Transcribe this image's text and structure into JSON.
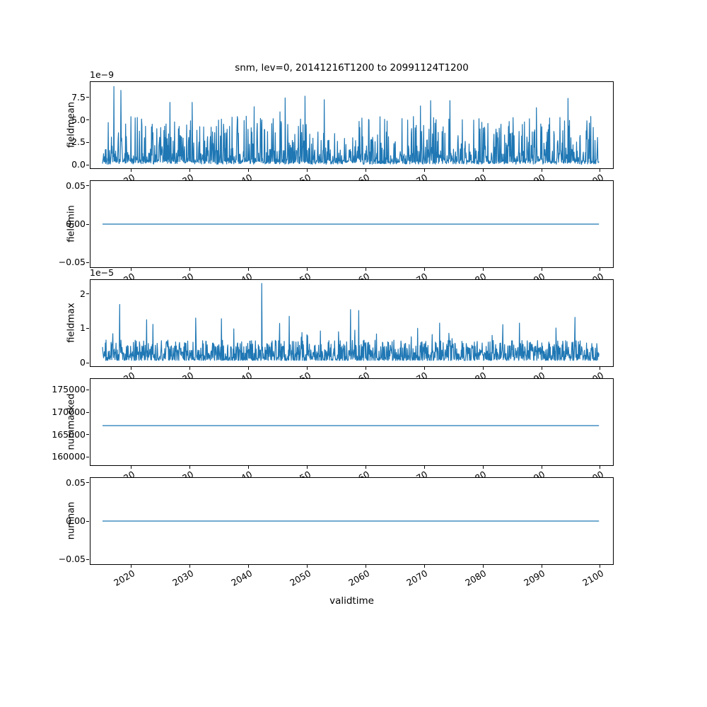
{
  "chart_data": {
    "type": "line",
    "title": "snm, lev=0, 20141216T1200 to 20991124T1200",
    "xlabel": "validtime",
    "line_color": "#1f77b4",
    "x_range_years": [
      2014.96,
      2099.9
    ],
    "xlim": [
      2012.9,
      2102.3
    ],
    "xticks": [
      {
        "v": 2020,
        "label": "2020"
      },
      {
        "v": 2030,
        "label": "2030"
      },
      {
        "v": 2040,
        "label": "2040"
      },
      {
        "v": 2050,
        "label": "2050"
      },
      {
        "v": 2060,
        "label": "2060"
      },
      {
        "v": 2070,
        "label": "2070"
      },
      {
        "v": 2080,
        "label": "2080"
      },
      {
        "v": 2090,
        "label": "2090"
      },
      {
        "v": 2100,
        "label": "2100"
      }
    ],
    "grid": false,
    "legend": "none",
    "subplots": [
      {
        "name": "fieldmean",
        "ylabel": "fieldmean",
        "offset_label": "1e−9",
        "ylim": [
          -0.45,
          9.3
        ],
        "yticks": [
          {
            "v": 0.0,
            "label": "0.0"
          },
          {
            "v": 2.5,
            "label": "2.5"
          },
          {
            "v": 5.0,
            "label": "5.0"
          },
          {
            "v": 7.5,
            "label": "7.5"
          }
        ],
        "series": {
          "kind": "noisy-spikes",
          "seed": 1337,
          "n": 1400,
          "base": 0.4,
          "mid_amp": 5.2,
          "mid_pow": 4,
          "tall_prob": 0.006,
          "tall_min": 5.0,
          "tall_span": 3.0,
          "approx_max_value": 8.8,
          "forced": [
            [
              2016.9,
              8.8
            ],
            [
              2018.1,
              8.35
            ],
            [
              2030.3,
              7.0
            ],
            [
              2040.9,
              6.5
            ],
            [
              2046.2,
              7.5
            ],
            [
              2049.6,
              7.7
            ],
            [
              2052.9,
              7.3
            ],
            [
              2071.1,
              7.2
            ],
            [
              2089.2,
              6.4
            ],
            [
              2094.6,
              7.45
            ]
          ]
        }
      },
      {
        "name": "fieldmin",
        "ylabel": "fieldmin",
        "offset_label": "",
        "ylim": [
          -0.057,
          0.057
        ],
        "yticks": [
          {
            "v": -0.05,
            "label": "−0.05"
          },
          {
            "v": 0.0,
            "label": "0.00"
          },
          {
            "v": 0.05,
            "label": "0.05"
          }
        ],
        "series": {
          "kind": "flat",
          "value": 0
        }
      },
      {
        "name": "fieldmax",
        "ylabel": "fieldmax",
        "offset_label": "1e−5",
        "ylim": [
          -0.12,
          2.42
        ],
        "yticks": [
          {
            "v": 0,
            "label": "0"
          },
          {
            "v": 1,
            "label": "1"
          },
          {
            "v": 2,
            "label": "2"
          }
        ],
        "series": {
          "kind": "noisy-band",
          "seed": 2024,
          "n": 1400,
          "base0": 0.05,
          "amp": 0.6,
          "band_pow": 2,
          "spike_prob": 0.02,
          "spike_min": 0.25,
          "spike_span": 0.55,
          "approx_max_value": 2.32,
          "forced": [
            [
              2017.9,
              1.7
            ],
            [
              2022.5,
              1.25
            ],
            [
              2030.9,
              1.3
            ],
            [
              2035.3,
              1.28
            ],
            [
              2042.2,
              2.32
            ],
            [
              2046.9,
              1.35
            ],
            [
              2057.4,
              1.55
            ],
            [
              2058.8,
              1.52
            ],
            [
              2086.3,
              1.15
            ],
            [
              2095.8,
              1.32
            ]
          ]
        }
      },
      {
        "name": "nummasked",
        "ylabel": "nummasked",
        "offset_label": "",
        "ylim": [
          158000,
          177600
        ],
        "yticks": [
          {
            "v": 160000,
            "label": "160000"
          },
          {
            "v": 165000,
            "label": "165000"
          },
          {
            "v": 170000,
            "label": "170000"
          },
          {
            "v": 175000,
            "label": "175000"
          }
        ],
        "series": {
          "kind": "flat",
          "value": 167000
        }
      },
      {
        "name": "numnan",
        "ylabel": "numnan",
        "offset_label": "",
        "ylim": [
          -0.057,
          0.057
        ],
        "yticks": [
          {
            "v": -0.05,
            "label": "−0.05"
          },
          {
            "v": 0.0,
            "label": "0.00"
          },
          {
            "v": 0.05,
            "label": "0.05"
          }
        ],
        "series": {
          "kind": "flat",
          "value": 0
        }
      }
    ]
  }
}
